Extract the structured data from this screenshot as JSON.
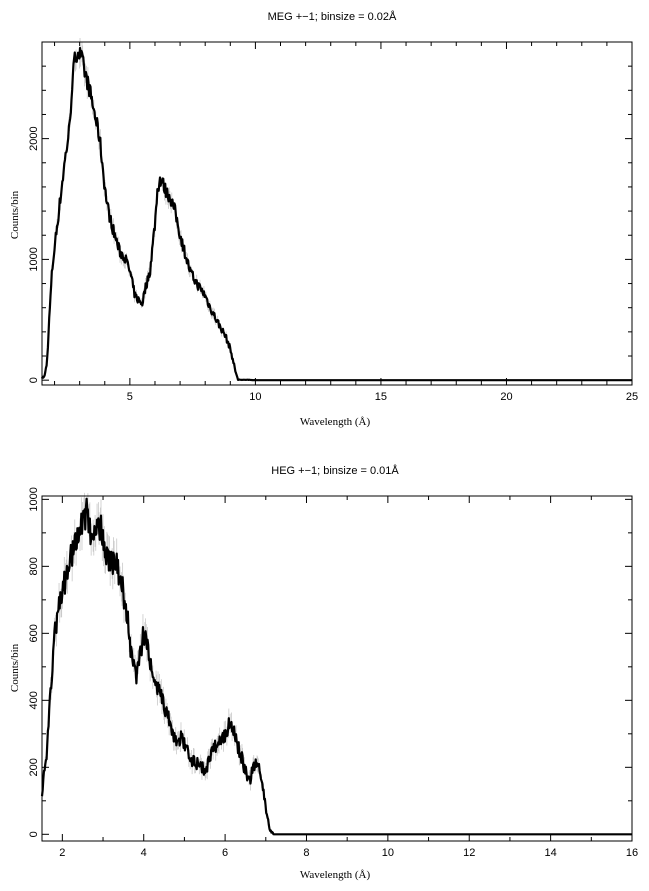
{
  "chart_data": [
    {
      "type": "line",
      "title": "MEG +−1; binsize = 0.02Å",
      "xlabel": "Wavelength (Å)",
      "ylabel": "Counts/bin",
      "xlim": [
        1.5,
        25
      ],
      "ylim": [
        -40,
        2800
      ],
      "x_ticks": [
        5,
        10,
        15,
        20,
        25
      ],
      "y_ticks": [
        0,
        1000,
        2000
      ],
      "grid": false,
      "series": [
        {
          "x": [
            1.5,
            1.6,
            1.7,
            1.8,
            1.9,
            2.0,
            2.2,
            2.4,
            2.6,
            2.7,
            2.8,
            2.9,
            3.0,
            3.1,
            3.2,
            3.4,
            3.6,
            3.8,
            3.9,
            4.0,
            4.1,
            4.2,
            4.4,
            4.6,
            4.8,
            5.0,
            5.2,
            5.4,
            5.5,
            5.6,
            5.8,
            6.0,
            6.1,
            6.2,
            6.3,
            6.4,
            6.5,
            6.6,
            6.8,
            7.0,
            7.2,
            7.4,
            7.6,
            7.8,
            8.0,
            8.2,
            8.4,
            8.6,
            8.8,
            9.0,
            9.2,
            9.3,
            10,
            12,
            14,
            16,
            18,
            20,
            22,
            24,
            25
          ],
          "y": [
            20,
            30,
            150,
            550,
            900,
            1100,
            1450,
            1800,
            2100,
            2450,
            2650,
            2720,
            2700,
            2650,
            2550,
            2400,
            2200,
            2000,
            1800,
            1600,
            1450,
            1350,
            1200,
            1060,
            1020,
            900,
            700,
            650,
            640,
            750,
            900,
            1300,
            1580,
            1660,
            1640,
            1580,
            1540,
            1520,
            1400,
            1200,
            1050,
            900,
            820,
            760,
            700,
            600,
            520,
            440,
            370,
            260,
            80,
            5,
            0,
            0,
            0,
            0,
            0,
            0,
            0,
            0,
            0
          ]
        }
      ]
    },
    {
      "type": "line",
      "title": "HEG +−1; binsize = 0.01Å",
      "xlabel": "Wavelength (Å)",
      "ylabel": "Counts/bin",
      "xlim": [
        1.5,
        16
      ],
      "ylim": [
        -20,
        1010
      ],
      "x_ticks": [
        2,
        4,
        6,
        8,
        10,
        12,
        14,
        16
      ],
      "y_ticks": [
        0,
        200,
        400,
        600,
        800,
        1000
      ],
      "grid": false,
      "series": [
        {
          "x": [
            1.5,
            1.6,
            1.7,
            1.8,
            1.9,
            2.0,
            2.1,
            2.2,
            2.3,
            2.4,
            2.5,
            2.6,
            2.7,
            2.8,
            2.9,
            3.0,
            3.1,
            3.2,
            3.3,
            3.4,
            3.5,
            3.6,
            3.7,
            3.8,
            3.9,
            4.0,
            4.1,
            4.2,
            4.3,
            4.4,
            4.5,
            4.6,
            4.7,
            4.8,
            4.9,
            5.0,
            5.1,
            5.2,
            5.3,
            5.4,
            5.5,
            5.6,
            5.7,
            5.8,
            5.9,
            6.0,
            6.1,
            6.2,
            6.3,
            6.4,
            6.5,
            6.6,
            6.7,
            6.8,
            6.9,
            7.0,
            7.1,
            7.2,
            8,
            10,
            12,
            14,
            16
          ],
          "y": [
            130,
            220,
            400,
            580,
            680,
            730,
            770,
            820,
            870,
            910,
            940,
            960,
            900,
            880,
            920,
            900,
            830,
            820,
            810,
            780,
            720,
            650,
            530,
            470,
            520,
            600,
            560,
            480,
            460,
            420,
            380,
            350,
            300,
            280,
            290,
            270,
            250,
            220,
            210,
            200,
            190,
            215,
            250,
            270,
            280,
            300,
            330,
            310,
            270,
            230,
            190,
            160,
            200,
            220,
            160,
            80,
            10,
            0,
            0,
            0,
            0,
            0,
            0
          ]
        }
      ]
    }
  ]
}
